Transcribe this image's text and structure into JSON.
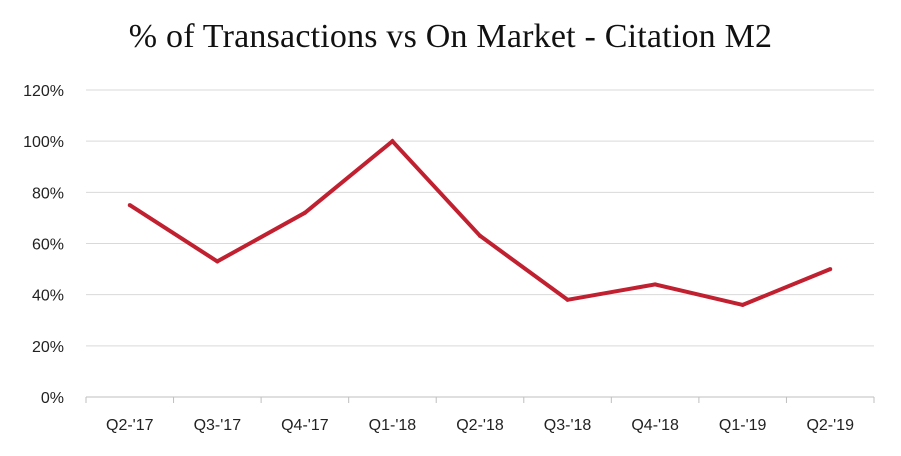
{
  "chart_data": {
    "type": "line",
    "title": "% of Transactions vs On Market - Citation M2",
    "xlabel": "",
    "ylabel": "",
    "categories": [
      "Q2-'17",
      "Q3-'17",
      "Q4-'17",
      "Q1-'18",
      "Q2-'18",
      "Q3-'18",
      "Q4-'18",
      "Q1-'19",
      "Q2-'19"
    ],
    "y_ticks": [
      "0%",
      "20%",
      "40%",
      "60%",
      "80%",
      "100%",
      "120%"
    ],
    "ylim": [
      0,
      120
    ],
    "grid": true,
    "legend": "none",
    "series": [
      {
        "values": [
          75,
          53,
          72,
          100,
          63,
          38,
          44,
          36,
          50
        ],
        "color": "#c0202f"
      }
    ]
  }
}
